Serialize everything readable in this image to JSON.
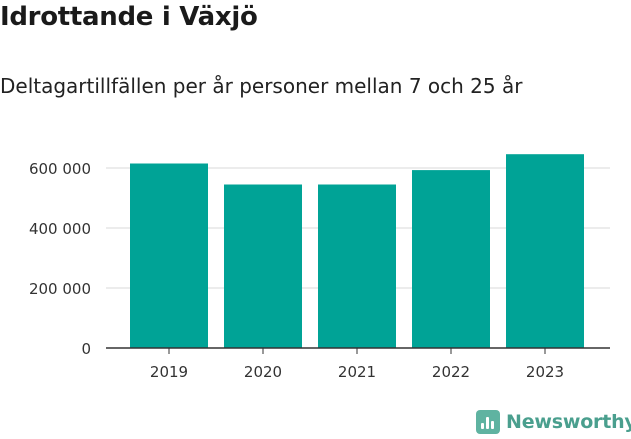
{
  "title": "Idrottande i Växjö",
  "subtitle": "Deltagartillfällen per år personer mellan 7 och 25 år",
  "brand": "Newsworthy",
  "colors": {
    "bar": "#00a396",
    "brand": "#4a9f8e",
    "grid": "#d9d9d9",
    "axis": "#333333"
  },
  "chart_data": {
    "type": "bar",
    "categories": [
      "2019",
      "2020",
      "2021",
      "2022",
      "2023"
    ],
    "values": [
      615000,
      545000,
      545000,
      593000,
      646000
    ],
    "ylim": [
      0,
      650000
    ],
    "yticks": [
      0,
      200000,
      400000,
      600000
    ],
    "ytick_labels": [
      "0",
      "200 000",
      "400 000",
      "600 000"
    ],
    "grid": true,
    "xlabel": "",
    "ylabel": ""
  }
}
